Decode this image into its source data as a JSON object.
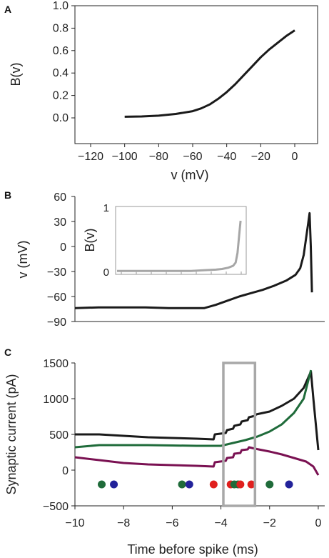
{
  "chart_data": [
    {
      "panel": "A",
      "type": "line",
      "xlabel": "v (mV)",
      "ylabel": "B(v)",
      "xlim": [
        -120,
        0
      ],
      "ylim": [
        0.0,
        1.0
      ],
      "xticks": [
        "-120",
        "-100",
        "-80",
        "-60",
        "-40",
        "-20",
        "0"
      ],
      "yticks": [
        "0.0",
        "0.2",
        "0.4",
        "0.6",
        "0.8",
        "1.0"
      ],
      "series": [
        {
          "color": "#1a1a1a",
          "x": [
            -100,
            -90,
            -80,
            -70,
            -60,
            -55,
            -50,
            -45,
            -40,
            -35,
            -30,
            -25,
            -20,
            -15,
            -10,
            -5,
            0
          ],
          "y": [
            0.01,
            0.013,
            0.02,
            0.035,
            0.06,
            0.085,
            0.12,
            0.17,
            0.23,
            0.3,
            0.38,
            0.46,
            0.54,
            0.61,
            0.67,
            0.73,
            0.78
          ]
        }
      ]
    },
    {
      "panel": "B",
      "type": "line",
      "xlabel": "",
      "ylabel": "v (mV)",
      "xlim": [
        -10,
        0.4
      ],
      "ylim": [
        -90,
        60
      ],
      "yticks": [
        "60",
        "30",
        "0",
        "-30",
        "-60",
        "-90"
      ],
      "series": [
        {
          "color": "#1a1a1a",
          "x": [
            -10,
            -9,
            -8,
            -7,
            -6,
            -5,
            -4.5,
            -4,
            -3.5,
            -3,
            -2.5,
            -2,
            -1.5,
            -1,
            -0.6,
            -0.4,
            -0.25,
            -0.15,
            -0.05,
            0.0,
            0.05,
            0.1
          ],
          "y": [
            -74,
            -73,
            -73,
            -73,
            -74,
            -74,
            -74,
            -70,
            -65,
            -60,
            -56,
            -52,
            -47,
            -41,
            -34,
            -26,
            -10,
            10,
            30,
            40,
            0,
            -55
          ]
        }
      ],
      "inset": {
        "ylabel": "B(v)",
        "yticks": [
          "1",
          "0"
        ],
        "ylim": [
          0,
          1
        ],
        "series": [
          {
            "color": "#a6a6a6",
            "x": [
              -10,
              -8,
              -6,
              -4,
              -3,
              -2,
              -1.5,
              -1,
              -0.6,
              -0.4,
              -0.25,
              -0.15,
              -0.05,
              0.0
            ],
            "y": [
              0.02,
              0.02,
              0.02,
              0.02,
              0.03,
              0.04,
              0.05,
              0.07,
              0.1,
              0.15,
              0.3,
              0.5,
              0.7,
              0.8
            ]
          }
        ]
      }
    },
    {
      "panel": "C",
      "type": "line",
      "xlabel": "Time before spike (ms)",
      "ylabel": "Synaptic current (pA)",
      "xlim": [
        -10,
        0.5
      ],
      "ylim": [
        -500,
        1500
      ],
      "xticks": [
        "-10",
        "-8",
        "-6",
        "-4",
        "-2",
        "0"
      ],
      "yticks": [
        "1500",
        "1000",
        "500",
        "0",
        "-500"
      ],
      "series": [
        {
          "color": "#1a1a1a",
          "x": [
            -10,
            -9,
            -8,
            -7,
            -6,
            -5,
            -4.3,
            -4.25,
            -3.8,
            -3.75,
            -3.5,
            -3.45,
            -3.2,
            -3.15,
            -2.9,
            -2.85,
            -2.6,
            -2.55,
            -2,
            -1.5,
            -1,
            -0.6,
            -0.3,
            -0.2,
            0
          ],
          "y": [
            500,
            500,
            480,
            460,
            450,
            440,
            430,
            500,
            520,
            560,
            580,
            620,
            640,
            680,
            700,
            740,
            760,
            780,
            820,
            900,
            1000,
            1150,
            1380,
            1000,
            280
          ]
        },
        {
          "color": "#1f6b3a",
          "x": [
            -10,
            -9,
            -8,
            -7,
            -6,
            -5,
            -4,
            -3.5,
            -3,
            -2.5,
            -2,
            -1.5,
            -1,
            -0.6,
            -0.3
          ],
          "y": [
            320,
            350,
            350,
            350,
            345,
            340,
            340,
            380,
            420,
            470,
            540,
            640,
            800,
            1000,
            1400
          ]
        },
        {
          "color": "#7a1152",
          "x": [
            -10,
            -9,
            -8,
            -7,
            -6,
            -5,
            -4.3,
            -4.25,
            -3.8,
            -3.75,
            -3.5,
            -3.45,
            -3.2,
            -3.15,
            -2.9,
            -2.85,
            -2.6,
            -2,
            -1.5,
            -1,
            -0.5,
            -0.2,
            0
          ],
          "y": [
            180,
            140,
            100,
            80,
            70,
            60,
            50,
            110,
            130,
            170,
            180,
            230,
            240,
            280,
            290,
            320,
            300,
            260,
            220,
            170,
            120,
            50,
            -70
          ]
        }
      ],
      "events": [
        {
          "x": -8.9,
          "color": "#1f6b3a"
        },
        {
          "x": -8.4,
          "color": "#22229a"
        },
        {
          "x": -5.6,
          "color": "#1f6b3a"
        },
        {
          "x": -5.3,
          "color": "#22229a"
        },
        {
          "x": -4.3,
          "color": "#e0201e"
        },
        {
          "x": -3.6,
          "color": "#e0201e"
        },
        {
          "x": -3.45,
          "color": "#1f6b3a"
        },
        {
          "x": -3.3,
          "color": "#1f6b3a"
        },
        {
          "x": -3.2,
          "color": "#e0201e"
        },
        {
          "x": -2.75,
          "color": "#e0201e"
        },
        {
          "x": -2.0,
          "color": "#1f6b3a"
        },
        {
          "x": -1.2,
          "color": "#22229a"
        }
      ],
      "event_y": -200,
      "highlight_box": {
        "x": [
          -3.9,
          -2.6
        ],
        "y": [
          -500,
          1500
        ],
        "color": "#a8a8a8"
      }
    }
  ],
  "panel_letters": [
    "A",
    "B",
    "C"
  ]
}
